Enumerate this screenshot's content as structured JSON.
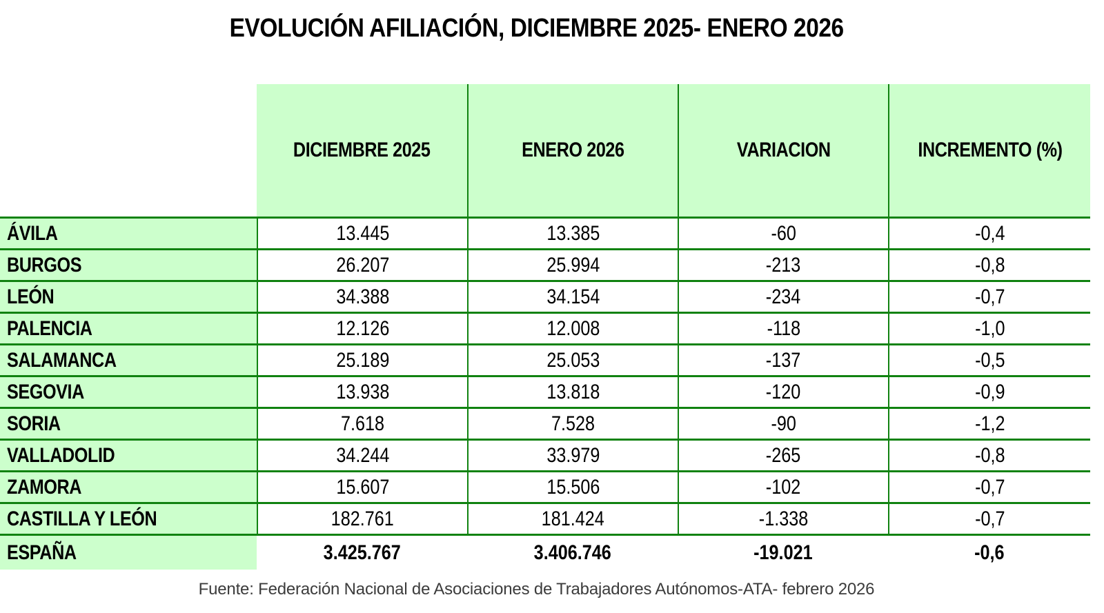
{
  "title": "EVOLUCIÓN AFILIACIÓN, DICIEMBRE 2025- ENERO 2026",
  "colors": {
    "cell_green": "#ccffcc",
    "border_green": "#108210"
  },
  "chart_data": {
    "type": "table",
    "title": "EVOLUCIÓN AFILIACIÓN, DICIEMBRE 2025- ENERO 2026",
    "columns": [
      "DICIEMBRE 2025",
      "ENERO 2026",
      "VARIACION",
      "INCREMENTO (%)"
    ],
    "rows": [
      {
        "label": "ÁVILA",
        "values": [
          "13.445",
          "13.385",
          "-60",
          "-0,4"
        ]
      },
      {
        "label": "BURGOS",
        "values": [
          "26.207",
          "25.994",
          "-213",
          "-0,8"
        ]
      },
      {
        "label": "LEÓN",
        "values": [
          "34.388",
          "34.154",
          "-234",
          "-0,7"
        ]
      },
      {
        "label": "PALENCIA",
        "values": [
          "12.126",
          "12.008",
          "-118",
          "-1,0"
        ]
      },
      {
        "label": "SALAMANCA",
        "values": [
          "25.189",
          "25.053",
          "-137",
          "-0,5"
        ]
      },
      {
        "label": "SEGOVIA",
        "values": [
          "13.938",
          "13.818",
          "-120",
          "-0,9"
        ]
      },
      {
        "label": "SORIA",
        "values": [
          "7.618",
          "7.528",
          "-90",
          "-1,2"
        ]
      },
      {
        "label": "VALLADOLID",
        "values": [
          "34.244",
          "33.979",
          "-265",
          "-0,8"
        ]
      },
      {
        "label": "ZAMORA",
        "values": [
          "15.607",
          "15.506",
          "-102",
          "-0,7"
        ]
      },
      {
        "label": "CASTILLA Y LEÓN",
        "values": [
          "182.761",
          "181.424",
          "-1.338",
          "-0,7"
        ]
      }
    ],
    "total": {
      "label": "ESPAÑA",
      "values": [
        "3.425.767",
        "3.406.746",
        "-19.021",
        "-0,6"
      ]
    },
    "source": "Fuente: Federación Nacional de Asociaciones de Trabajadores Autónomos-ATA- febrero 2026"
  }
}
